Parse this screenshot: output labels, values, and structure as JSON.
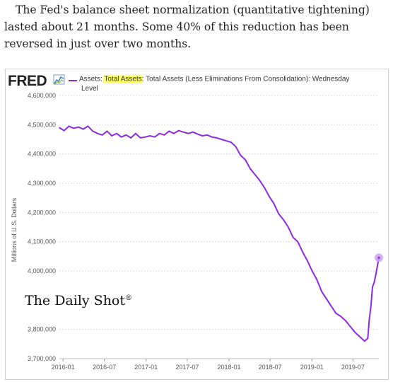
{
  "caption": {
    "text": "The Fed's balance sheet normalization (quantitative tightening) lasted about 21 months. Some 40% of this reduction has been reversed in just over two months."
  },
  "header": {
    "logo": "FRED",
    "legend_prefix": "Assets: ",
    "legend_highlight": "Total Assets",
    "legend_rest": ": Total Assets (Less Eliminations From Consolidation): Wednesday",
    "legend_line2": "Level"
  },
  "watermark": {
    "text": "The Daily Shot",
    "mark": "®"
  },
  "colors": {
    "line": "#8a2be2",
    "highlight": "#ffff66",
    "grid": "#dddddd",
    "endpoint": "#c9a3ee"
  },
  "chart_data": {
    "type": "line",
    "ylabel": "Millions of U.S. Dollars",
    "xlabel": "",
    "ylim": [
      3700000,
      4600000
    ],
    "xlim": [
      "2015-12-16",
      "2019-10-23"
    ],
    "y_ticks": [
      "3,700,000",
      "3,800,000",
      "4,000,000",
      "4,100,000",
      "4,200,000",
      "4,300,000",
      "4,400,000",
      "4,500,000",
      "4,600,000"
    ],
    "y_tick_values": [
      3700000,
      3800000,
      4000000,
      4100000,
      4200000,
      4300000,
      4400000,
      4500000,
      4600000
    ],
    "x_ticks": [
      "2016-01",
      "2016-07",
      "2017-01",
      "2017-07",
      "2018-01",
      "2018-07",
      "2019-01",
      "2019-07"
    ],
    "grid": true,
    "series": [
      {
        "x": [
          "2015-12-16",
          "2016-01-06",
          "2016-01-27",
          "2016-02-17",
          "2016-03-09",
          "2016-03-30",
          "2016-04-20",
          "2016-05-11",
          "2016-06-01",
          "2016-06-22",
          "2016-07-13",
          "2016-08-03",
          "2016-08-24",
          "2016-09-14",
          "2016-10-05",
          "2016-10-26",
          "2016-11-16",
          "2016-12-07",
          "2016-12-28",
          "2017-01-18",
          "2017-02-08",
          "2017-03-01",
          "2017-03-22",
          "2017-04-12",
          "2017-05-03",
          "2017-05-24",
          "2017-06-14",
          "2017-07-05",
          "2017-07-26",
          "2017-08-16",
          "2017-09-06",
          "2017-09-27",
          "2017-10-18",
          "2017-11-08",
          "2017-11-29",
          "2017-12-20",
          "2018-01-10",
          "2018-01-31",
          "2018-02-21",
          "2018-03-14",
          "2018-04-04",
          "2018-04-25",
          "2018-05-16",
          "2018-06-06",
          "2018-06-27",
          "2018-07-18",
          "2018-08-08",
          "2018-08-29",
          "2018-09-19",
          "2018-10-10",
          "2018-10-31",
          "2018-11-21",
          "2018-12-12",
          "2019-01-02",
          "2019-01-23",
          "2019-02-13",
          "2019-03-06",
          "2019-03-27",
          "2019-04-17",
          "2019-05-08",
          "2019-05-29",
          "2019-06-19",
          "2019-07-10",
          "2019-07-31",
          "2019-08-21",
          "2019-09-04",
          "2019-09-11",
          "2019-09-18",
          "2019-09-25",
          "2019-10-02",
          "2019-10-09",
          "2019-10-16",
          "2019-10-23"
        ],
        "values": [
          4490000,
          4480000,
          4495000,
          4488000,
          4492000,
          4485000,
          4495000,
          4478000,
          4470000,
          4465000,
          4478000,
          4462000,
          4470000,
          4458000,
          4465000,
          4455000,
          4470000,
          4455000,
          4458000,
          4462000,
          4458000,
          4470000,
          4465000,
          4478000,
          4470000,
          4480000,
          4475000,
          4470000,
          4475000,
          4468000,
          4462000,
          4465000,
          4458000,
          4455000,
          4450000,
          4445000,
          4440000,
          4425000,
          4395000,
          4380000,
          4350000,
          4330000,
          4310000,
          4285000,
          4255000,
          4230000,
          4195000,
          4175000,
          4150000,
          4115000,
          4100000,
          4065000,
          4035000,
          4000000,
          3970000,
          3930000,
          3905000,
          3880000,
          3855000,
          3845000,
          3830000,
          3810000,
          3790000,
          3775000,
          3760000,
          3770000,
          3835000,
          3880000,
          3945000,
          3960000,
          3985000,
          4015000,
          4045000
        ]
      }
    ]
  }
}
